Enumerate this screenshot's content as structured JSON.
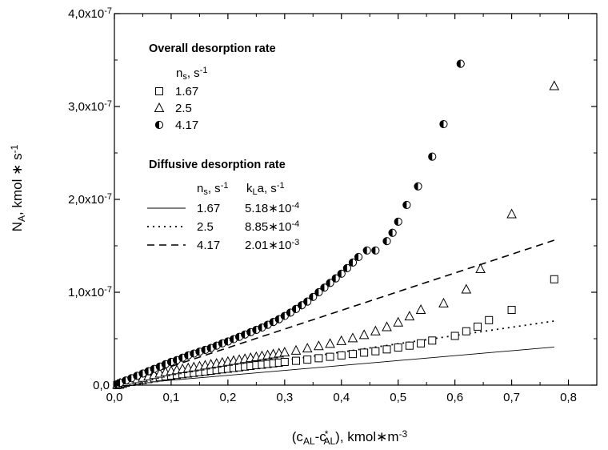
{
  "chart_data": {
    "type": "scatter",
    "title": "",
    "xlabel": {
      "main": "(c",
      "sub1": "AL",
      "mid": "-c",
      "sup": "*",
      "sub2": "AL",
      "tail": "), kmol∗m",
      "exp": "-3"
    },
    "ylabel": {
      "main": "N",
      "sub": "A",
      "tail": ", kmol ∗ s",
      "exp": "-1"
    },
    "xlim": [
      0,
      0.85
    ],
    "ylim": [
      0,
      4e-07
    ],
    "x_ticks": [
      "0,0",
      "0,1",
      "0,2",
      "0,3",
      "0,4",
      "0,5",
      "0,6",
      "0,7",
      "0,8"
    ],
    "y_ticks": [
      {
        "mant": "0,0",
        "exp": ""
      },
      {
        "mant": "1,0x10",
        "exp": "-7"
      },
      {
        "mant": "2,0x10",
        "exp": "-7"
      },
      {
        "mant": "3,0x10",
        "exp": "-7"
      },
      {
        "mant": "4,0x10",
        "exp": "-7"
      }
    ],
    "legend": {
      "placement": "top-left",
      "overall_title": "Overall desorption rate",
      "overall_col": {
        "main": "n",
        "sub": "s",
        "tail": ", s",
        "exp": "-1"
      },
      "diffusive_title": "Diffusive desorption rate",
      "diffusive_col1": {
        "main": "n",
        "sub": "s",
        "tail": ", s",
        "exp": "-1"
      },
      "diffusive_col2": {
        "main": "k",
        "sub": "L",
        "tail": "a, s",
        "exp": "-1"
      }
    },
    "scatter_series": [
      {
        "name": "1.67",
        "marker": "square",
        "points": [
          [
            0.005,
            0.0
          ],
          [
            0.01,
            5e-10
          ],
          [
            0.015,
            1.5e-09
          ],
          [
            0.02,
            2.5e-09
          ],
          [
            0.03,
            3.5e-09
          ],
          [
            0.04,
            4.5e-09
          ],
          [
            0.05,
            5.5e-09
          ],
          [
            0.06,
            6.5e-09
          ],
          [
            0.07,
            7.5e-09
          ],
          [
            0.08,
            8.5e-09
          ],
          [
            0.09,
            9.5e-09
          ],
          [
            0.1,
            1.03e-08
          ],
          [
            0.11,
            1.1e-08
          ],
          [
            0.12,
            1.18e-08
          ],
          [
            0.13,
            1.25e-08
          ],
          [
            0.14,
            1.32e-08
          ],
          [
            0.15,
            1.4e-08
          ],
          [
            0.16,
            1.47e-08
          ],
          [
            0.17,
            1.55e-08
          ],
          [
            0.18,
            1.62e-08
          ],
          [
            0.19,
            1.7e-08
          ],
          [
            0.2,
            1.77e-08
          ],
          [
            0.21,
            1.85e-08
          ],
          [
            0.22,
            1.92e-08
          ],
          [
            0.23,
            2e-08
          ],
          [
            0.24,
            2.07e-08
          ],
          [
            0.25,
            2.15e-08
          ],
          [
            0.26,
            2.2e-08
          ],
          [
            0.27,
            2.28e-08
          ],
          [
            0.28,
            2.35e-08
          ],
          [
            0.29,
            2.42e-08
          ],
          [
            0.3,
            2.5e-08
          ],
          [
            0.32,
            2.62e-08
          ],
          [
            0.34,
            2.75e-08
          ],
          [
            0.36,
            2.9e-08
          ],
          [
            0.38,
            3.05e-08
          ],
          [
            0.4,
            3.2e-08
          ],
          [
            0.42,
            3.35e-08
          ],
          [
            0.44,
            3.5e-08
          ],
          [
            0.46,
            3.65e-08
          ],
          [
            0.48,
            3.85e-08
          ],
          [
            0.5,
            4.05e-08
          ],
          [
            0.52,
            4.25e-08
          ],
          [
            0.54,
            4.5e-08
          ],
          [
            0.56,
            4.8e-08
          ],
          [
            0.6,
            5.3e-08
          ],
          [
            0.62,
            5.8e-08
          ],
          [
            0.64,
            6.3e-08
          ],
          [
            0.66,
            7e-08
          ],
          [
            0.7,
            8.1e-08
          ],
          [
            0.775,
            1.14e-07
          ]
        ]
      },
      {
        "name": "2.5",
        "marker": "triangle",
        "points": [
          [
            0.005,
            5e-10
          ],
          [
            0.01,
            2e-09
          ],
          [
            0.02,
            3.5e-09
          ],
          [
            0.03,
            5e-09
          ],
          [
            0.04,
            6.5e-09
          ],
          [
            0.05,
            8e-09
          ],
          [
            0.06,
            9.5e-09
          ],
          [
            0.07,
            1.1e-08
          ],
          [
            0.08,
            1.25e-08
          ],
          [
            0.09,
            1.4e-08
          ],
          [
            0.1,
            1.52e-08
          ],
          [
            0.11,
            1.62e-08
          ],
          [
            0.12,
            1.72e-08
          ],
          [
            0.13,
            1.82e-08
          ],
          [
            0.14,
            1.92e-08
          ],
          [
            0.15,
            2.02e-08
          ],
          [
            0.16,
            2.12e-08
          ],
          [
            0.17,
            2.22e-08
          ],
          [
            0.18,
            2.32e-08
          ],
          [
            0.19,
            2.42e-08
          ],
          [
            0.2,
            2.52e-08
          ],
          [
            0.21,
            2.62e-08
          ],
          [
            0.22,
            2.72e-08
          ],
          [
            0.23,
            2.82e-08
          ],
          [
            0.24,
            2.92e-08
          ],
          [
            0.25,
            3.02e-08
          ],
          [
            0.26,
            3.12e-08
          ],
          [
            0.27,
            3.22e-08
          ],
          [
            0.28,
            3.32e-08
          ],
          [
            0.29,
            3.42e-08
          ],
          [
            0.3,
            3.52e-08
          ],
          [
            0.32,
            3.72e-08
          ],
          [
            0.34,
            3.95e-08
          ],
          [
            0.36,
            4.2e-08
          ],
          [
            0.38,
            4.45e-08
          ],
          [
            0.4,
            4.75e-08
          ],
          [
            0.42,
            5.05e-08
          ],
          [
            0.44,
            5.4e-08
          ],
          [
            0.46,
            5.8e-08
          ],
          [
            0.48,
            6.25e-08
          ],
          [
            0.5,
            6.75e-08
          ],
          [
            0.52,
            7.4e-08
          ],
          [
            0.54,
            8.1e-08
          ],
          [
            0.58,
            8.8e-08
          ],
          [
            0.62,
            1.03e-07
          ],
          [
            0.645,
            1.25e-07
          ],
          [
            0.7,
            1.84e-07
          ],
          [
            0.775,
            3.22e-07
          ]
        ]
      },
      {
        "name": "4.17",
        "marker": "half-circle",
        "points": [
          [
            0.005,
            1e-09
          ],
          [
            0.01,
            2.5e-09
          ],
          [
            0.02,
            5e-09
          ],
          [
            0.03,
            7.5e-09
          ],
          [
            0.04,
            1e-08
          ],
          [
            0.05,
            1.25e-08
          ],
          [
            0.06,
            1.5e-08
          ],
          [
            0.07,
            1.75e-08
          ],
          [
            0.08,
            2e-08
          ],
          [
            0.09,
            2.25e-08
          ],
          [
            0.1,
            2.5e-08
          ],
          [
            0.11,
            2.7e-08
          ],
          [
            0.12,
            2.95e-08
          ],
          [
            0.13,
            3.2e-08
          ],
          [
            0.14,
            3.4e-08
          ],
          [
            0.15,
            3.6e-08
          ],
          [
            0.16,
            3.8e-08
          ],
          [
            0.17,
            4e-08
          ],
          [
            0.18,
            4.25e-08
          ],
          [
            0.19,
            4.5e-08
          ],
          [
            0.2,
            4.7e-08
          ],
          [
            0.21,
            4.95e-08
          ],
          [
            0.22,
            5.2e-08
          ],
          [
            0.23,
            5.45e-08
          ],
          [
            0.24,
            5.7e-08
          ],
          [
            0.25,
            5.95e-08
          ],
          [
            0.26,
            6.2e-08
          ],
          [
            0.27,
            6.5e-08
          ],
          [
            0.28,
            6.8e-08
          ],
          [
            0.29,
            7.1e-08
          ],
          [
            0.3,
            7.45e-08
          ],
          [
            0.31,
            7.8e-08
          ],
          [
            0.32,
            8.2e-08
          ],
          [
            0.33,
            8.6e-08
          ],
          [
            0.34,
            9e-08
          ],
          [
            0.35,
            9.5e-08
          ],
          [
            0.36,
            1e-07
          ],
          [
            0.37,
            1.05e-07
          ],
          [
            0.38,
            1.1e-07
          ],
          [
            0.39,
            1.15e-07
          ],
          [
            0.4,
            1.2e-07
          ],
          [
            0.41,
            1.26e-07
          ],
          [
            0.42,
            1.32e-07
          ],
          [
            0.43,
            1.38e-07
          ],
          [
            0.445,
            1.45e-07
          ],
          [
            0.46,
            1.45e-07
          ],
          [
            0.48,
            1.55e-07
          ],
          [
            0.49,
            1.64e-07
          ],
          [
            0.5,
            1.76e-07
          ],
          [
            0.515,
            1.94e-07
          ],
          [
            0.535,
            2.14e-07
          ],
          [
            0.56,
            2.46e-07
          ],
          [
            0.58,
            2.81e-07
          ],
          [
            0.61,
            3.46e-07
          ]
        ]
      }
    ],
    "line_series": [
      {
        "name": "1.67",
        "kla_mant": "5.18∗10",
        "kla_exp": "-4",
        "style": "solid",
        "x": [
          0.0,
          0.775
        ],
        "y": [
          0.0,
          4.1e-08
        ]
      },
      {
        "name": "2.5",
        "kla_mant": "8.85∗10",
        "kla_exp": "-4",
        "style": "dotted",
        "x": [
          0.0,
          0.775
        ],
        "y": [
          0.0,
          6.9e-08
        ]
      },
      {
        "name": "4.17",
        "kla_mant": "2.01∗10",
        "kla_exp": "-3",
        "style": "dashed",
        "x": [
          0.0,
          0.775
        ],
        "y": [
          0.0,
          1.56e-07
        ]
      }
    ],
    "grid": false
  }
}
